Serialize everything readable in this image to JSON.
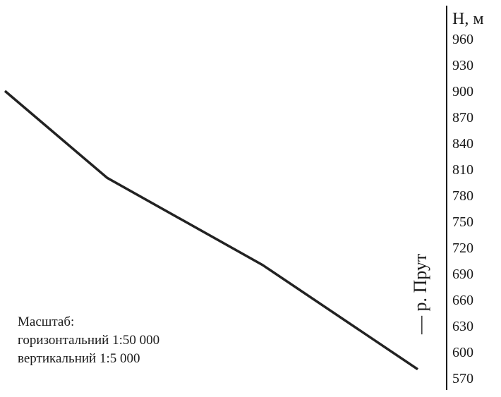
{
  "chart_data": {
    "type": "line",
    "title": "",
    "ylabel": "H, м",
    "yticks": [
      960,
      930,
      900,
      870,
      840,
      810,
      780,
      750,
      720,
      690,
      660,
      630,
      600,
      570
    ],
    "ylim": [
      570,
      960
    ],
    "series": [
      {
        "values": [
          900,
          800,
          700,
          580
        ]
      }
    ],
    "annotation": "— р. Прут",
    "scale": {
      "heading": "Масштаб:",
      "horizontal": "горизонтальний 1:50 000",
      "vertical": "вертикальний 1:5 000"
    },
    "grid": false,
    "line_color": "#222222"
  }
}
